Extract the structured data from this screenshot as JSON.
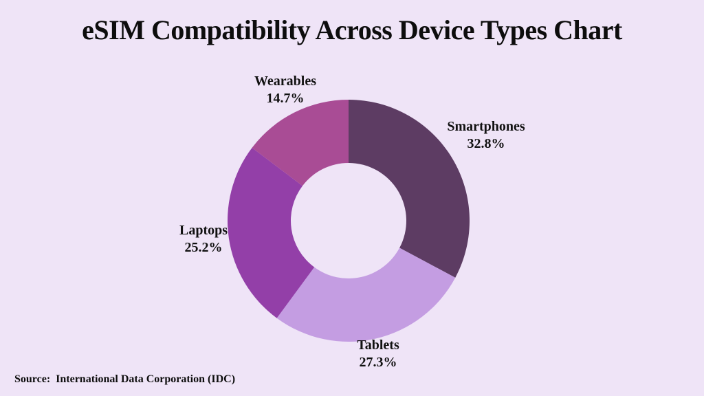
{
  "title": "eSIM Compatibility Across Device Types Chart",
  "source": "Source:  International Data Corporation (IDC)",
  "colors": {
    "background": "#EFE4F7",
    "text": "#111111"
  },
  "chart_data": {
    "type": "pie",
    "subtype": "donut",
    "title": "eSIM Compatibility Across Device Types Chart",
    "unit": "%",
    "start_angle_deg": 0,
    "direction": "clockwise",
    "inner_radius_ratio": 0.48,
    "labels_position": "outside",
    "segments": [
      {
        "label": "Smartphones",
        "value": 32.8,
        "pct": "32.8%",
        "color": "#5D3C63"
      },
      {
        "label": "Tablets",
        "value": 27.3,
        "pct": "27.3%",
        "color": "#C49DE2"
      },
      {
        "label": "Laptops",
        "value": 25.2,
        "pct": "25.2%",
        "color": "#933FA8"
      },
      {
        "label": "Wearables",
        "value": 14.7,
        "pct": "14.7%",
        "color": "#A94C95"
      }
    ],
    "source": "Source:  International Data Corporation (IDC)"
  }
}
